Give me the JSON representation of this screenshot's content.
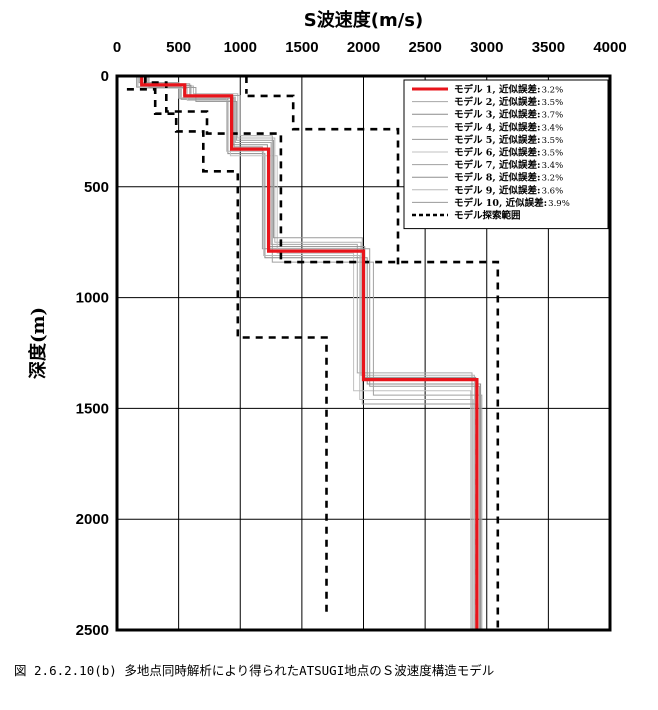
{
  "chart_data": {
    "type": "line",
    "title": "",
    "xlabel": "S波速度(m/s)",
    "ylabel": "深度(m)",
    "xlim": [
      0,
      4000
    ],
    "ylim": [
      0,
      2500
    ],
    "y_inverted": true,
    "x_ticks": [
      "0",
      "500",
      "1000",
      "1500",
      "2000",
      "2500",
      "3000",
      "3500",
      "4000"
    ],
    "y_ticks": [
      "0",
      "500",
      "1000",
      "1500",
      "2000",
      "2500"
    ],
    "grid": true,
    "legend_position": "top-right",
    "series": [
      {
        "name": "モデル 1, 近似誤差",
        "error": "3.2%",
        "color": "#e8141b",
        "width": 3.2,
        "dash": "none",
        "points": [
          [
            200,
            0
          ],
          [
            200,
            40
          ],
          [
            550,
            40
          ],
          [
            550,
            90
          ],
          [
            930,
            90
          ],
          [
            930,
            330
          ],
          [
            1230,
            330
          ],
          [
            1230,
            790
          ],
          [
            2000,
            790
          ],
          [
            2000,
            1370
          ],
          [
            2920,
            1370
          ],
          [
            2920,
            2500
          ]
        ]
      },
      {
        "name": "モデル 2, 近似誤差",
        "error": "3.5%",
        "color": "#a6a6a6",
        "width": 1,
        "dash": "none",
        "points": [
          [
            230,
            0
          ],
          [
            230,
            35
          ],
          [
            590,
            35
          ],
          [
            590,
            95
          ],
          [
            960,
            95
          ],
          [
            960,
            300
          ],
          [
            1250,
            300
          ],
          [
            1250,
            760
          ],
          [
            1950,
            760
          ],
          [
            1950,
            1340
          ],
          [
            2880,
            1340
          ],
          [
            2880,
            2500
          ]
        ]
      },
      {
        "name": "モデル 3, 近似誤差",
        "error": "3.7%",
        "color": "#8c8c8c",
        "width": 1,
        "dash": "none",
        "points": [
          [
            160,
            0
          ],
          [
            160,
            50
          ],
          [
            520,
            50
          ],
          [
            520,
            105
          ],
          [
            900,
            105
          ],
          [
            900,
            350
          ],
          [
            1200,
            350
          ],
          [
            1200,
            820
          ],
          [
            2030,
            820
          ],
          [
            2030,
            1390
          ],
          [
            2950,
            1390
          ],
          [
            2950,
            2500
          ]
        ]
      },
      {
        "name": "モデル 4, 近似誤差",
        "error": "3.4%",
        "color": "#b3b3b3",
        "width": 1,
        "dash": "none",
        "points": [
          [
            250,
            0
          ],
          [
            250,
            45
          ],
          [
            620,
            45
          ],
          [
            620,
            80
          ],
          [
            980,
            80
          ],
          [
            980,
            280
          ],
          [
            1280,
            280
          ],
          [
            1280,
            750
          ],
          [
            1980,
            750
          ],
          [
            1980,
            1350
          ],
          [
            2900,
            1350
          ],
          [
            2900,
            2500
          ]
        ]
      },
      {
        "name": "モデル 5, 近似誤差",
        "error": "3.5%",
        "color": "#999999",
        "width": 1,
        "dash": "none",
        "points": [
          [
            180,
            0
          ],
          [
            180,
            30
          ],
          [
            500,
            30
          ],
          [
            500,
            100
          ],
          [
            950,
            100
          ],
          [
            950,
            320
          ],
          [
            1180,
            320
          ],
          [
            1180,
            780
          ],
          [
            2050,
            780
          ],
          [
            2050,
            1400
          ],
          [
            2940,
            1400
          ],
          [
            2940,
            2500
          ]
        ]
      },
      {
        "name": "モデル 6, 近似誤差",
        "error": "3.5%",
        "color": "#c0c0c0",
        "width": 1,
        "dash": "none",
        "points": [
          [
            210,
            0
          ],
          [
            210,
            55
          ],
          [
            570,
            55
          ],
          [
            570,
            110
          ],
          [
            920,
            110
          ],
          [
            920,
            360
          ],
          [
            1300,
            360
          ],
          [
            1300,
            800
          ],
          [
            1920,
            800
          ],
          [
            1920,
            1420
          ],
          [
            2870,
            1420
          ],
          [
            2870,
            2500
          ]
        ]
      },
      {
        "name": "モデル 7, 近似誤差",
        "error": "3.4%",
        "color": "#a0a0a0",
        "width": 1,
        "dash": "none",
        "points": [
          [
            190,
            0
          ],
          [
            190,
            38
          ],
          [
            540,
            38
          ],
          [
            540,
            88
          ],
          [
            1000,
            88
          ],
          [
            1000,
            270
          ],
          [
            1260,
            270
          ],
          [
            1260,
            840
          ],
          [
            2080,
            840
          ],
          [
            2080,
            1440
          ],
          [
            2960,
            1440
          ],
          [
            2960,
            2500
          ]
        ]
      },
      {
        "name": "モデル 8, 近似誤差",
        "error": "3.2%",
        "color": "#8f8f8f",
        "width": 1,
        "dash": "none",
        "points": [
          [
            240,
            0
          ],
          [
            240,
            42
          ],
          [
            600,
            42
          ],
          [
            600,
            92
          ],
          [
            940,
            92
          ],
          [
            940,
            310
          ],
          [
            1220,
            310
          ],
          [
            1220,
            770
          ],
          [
            2010,
            770
          ],
          [
            2010,
            1360
          ],
          [
            2910,
            1360
          ],
          [
            2910,
            2500
          ]
        ]
      },
      {
        "name": "モデル 9, 近似誤差",
        "error": "3.6%",
        "color": "#b8b8b8",
        "width": 1,
        "dash": "none",
        "points": [
          [
            170,
            0
          ],
          [
            170,
            48
          ],
          [
            510,
            48
          ],
          [
            510,
            98
          ],
          [
            890,
            98
          ],
          [
            890,
            340
          ],
          [
            1190,
            340
          ],
          [
            1190,
            810
          ],
          [
            1970,
            810
          ],
          [
            1970,
            1460
          ],
          [
            2890,
            1460
          ],
          [
            2890,
            2500
          ]
        ]
      },
      {
        "name": "モデル 10, 近似誤差",
        "error": "3.9%",
        "color": "#9a9a9a",
        "width": 1,
        "dash": "none",
        "points": [
          [
            260,
            0
          ],
          [
            260,
            52
          ],
          [
            640,
            52
          ],
          [
            640,
            115
          ],
          [
            970,
            115
          ],
          [
            970,
            290
          ],
          [
            1270,
            290
          ],
          [
            1270,
            730
          ],
          [
            1990,
            730
          ],
          [
            1990,
            1480
          ],
          [
            2930,
            1480
          ],
          [
            2930,
            2500
          ]
        ]
      },
      {
        "name": "モデル探索範囲",
        "error": "",
        "color": "#000000",
        "width": 2.6,
        "dash": "7,6",
        "points": [
          [
            230,
            0
          ],
          [
            230,
            30
          ],
          [
            400,
            30
          ],
          [
            400,
            160
          ],
          [
            730,
            160
          ],
          [
            730,
            260
          ],
          [
            1330,
            260
          ],
          [
            1330,
            840
          ],
          [
            3090,
            840
          ],
          [
            3090,
            2500
          ]
        ]
      },
      {
        "name": "",
        "error": "",
        "color": "#000000",
        "width": 2.6,
        "dash": "7,6",
        "points": [
          [
            80,
            60
          ],
          [
            310,
            60
          ],
          [
            310,
            170
          ],
          [
            480,
            170
          ],
          [
            480,
            250
          ],
          [
            700,
            250
          ],
          [
            700,
            430
          ],
          [
            980,
            430
          ],
          [
            980,
            1180
          ],
          [
            1700,
            1180
          ],
          [
            1700,
            2440
          ]
        ]
      },
      {
        "name": "",
        "error": "",
        "color": "#000000",
        "width": 2.6,
        "dash": "7,6",
        "points": [
          [
            1060,
            90
          ],
          [
            1430,
            90
          ],
          [
            1430,
            240
          ],
          [
            2280,
            240
          ],
          [
            2280,
            850
          ]
        ]
      },
      {
        "name": "",
        "error": "",
        "color": "#000000",
        "width": 2.6,
        "dash": "7,6",
        "points": [
          [
            1050,
            0
          ],
          [
            1050,
            80
          ]
        ]
      }
    ]
  },
  "caption": "図 2.6.2.10(b)  多地点同時解析により得られたATSUGI地点のＳ波速度構造モデル"
}
